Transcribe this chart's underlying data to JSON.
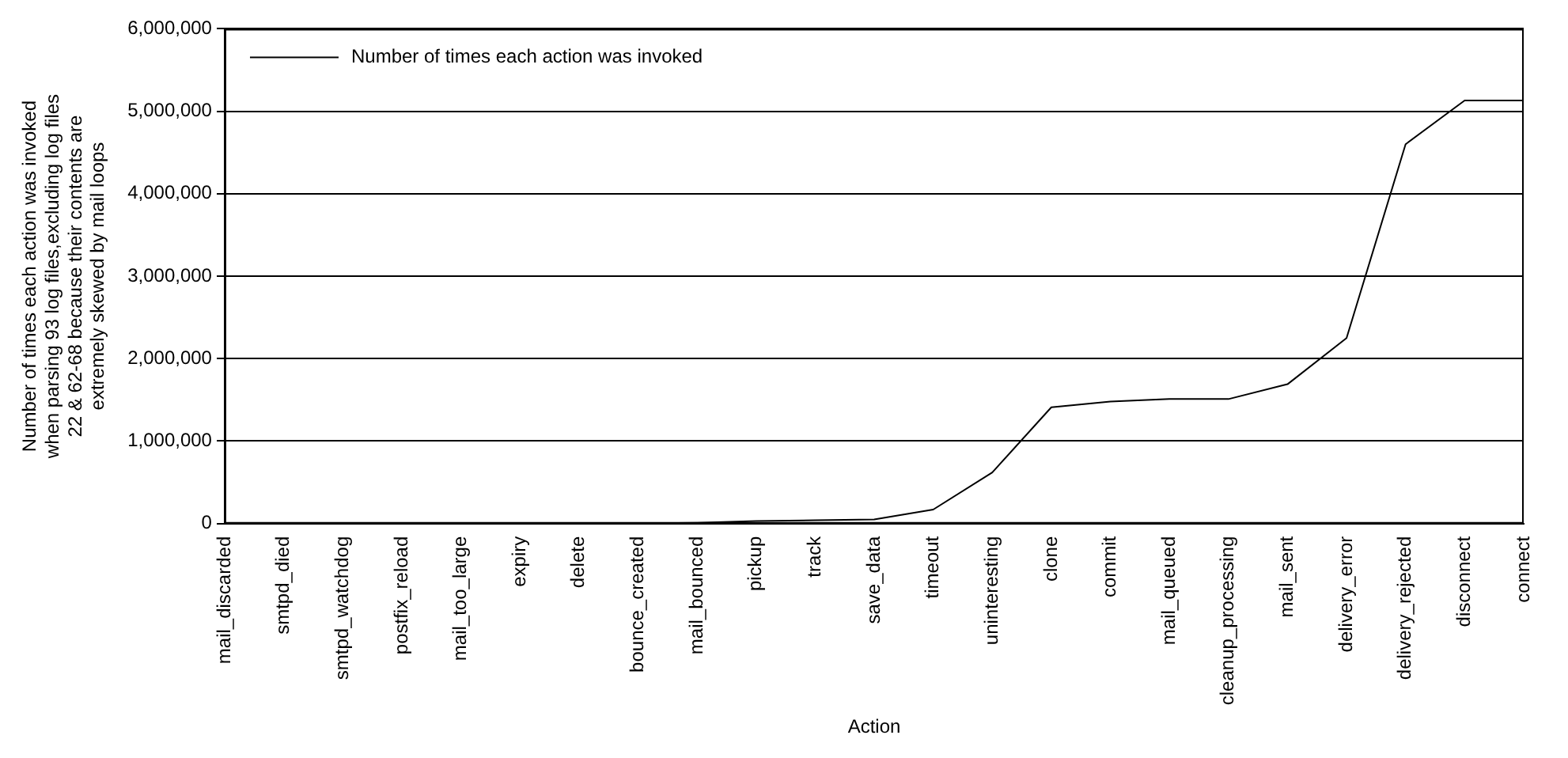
{
  "chart_data": {
    "type": "line",
    "xlabel": "Action",
    "ylabel": "Number of times each action was invoked\nwhen parsing 93 log files,excluding log files\n22 & 62-68 because their contents are\nextremely skewed by mail loops",
    "categories": [
      "mail_discarded",
      "smtpd_died",
      "smtpd_watchdog",
      "postfix_reload",
      "mail_too_large",
      "expiry",
      "delete",
      "bounce_created",
      "mail_bounced",
      "pickup",
      "track",
      "save_data",
      "timeout",
      "uninteresting",
      "clone",
      "commit",
      "mail_queued",
      "cleanup_processing",
      "mail_sent",
      "delivery_error",
      "delivery_rejected",
      "disconnect",
      "connect"
    ],
    "series": [
      {
        "name": "Number of times each action was invoked",
        "color": "#000000",
        "values": [
          0,
          0,
          0,
          0,
          0,
          0,
          0,
          2000,
          10000,
          30000,
          40000,
          50000,
          170000,
          620000,
          1410000,
          1480000,
          1510000,
          1510000,
          1690000,
          2250000,
          4600000,
          5130000,
          5130000
        ]
      }
    ],
    "ylim": [
      0,
      6000000
    ],
    "yticks": [
      {
        "value": 0,
        "label": "0"
      },
      {
        "value": 1000000,
        "label": "1,000,000"
      },
      {
        "value": 2000000,
        "label": "2,000,000"
      },
      {
        "value": 3000000,
        "label": "3,000,000"
      },
      {
        "value": 4000000,
        "label": "4,000,000"
      },
      {
        "value": 5000000,
        "label": "5,000,000"
      },
      {
        "value": 6000000,
        "label": "6,000,000"
      }
    ],
    "grid": "y",
    "legend": "top left",
    "marker": "none",
    "line_style": "solid"
  }
}
